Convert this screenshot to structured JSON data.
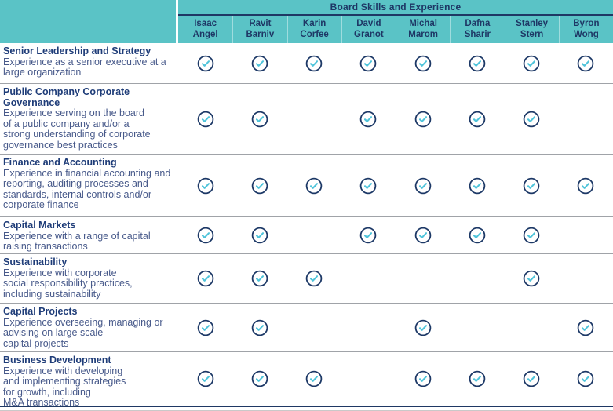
{
  "header": {
    "group_title": "Board Skills and Experience",
    "columns": [
      {
        "first_name": "Isaac",
        "last_name": "Angel"
      },
      {
        "first_name": "Ravit",
        "last_name": "Barniv"
      },
      {
        "first_name": "Karin",
        "last_name": "Corfee"
      },
      {
        "first_name": "David",
        "last_name": "Granot"
      },
      {
        "first_name": "Michal",
        "last_name": "Marom"
      },
      {
        "first_name": "Dafna",
        "last_name": "Sharir"
      },
      {
        "first_name": "Stanley",
        "last_name": "Stern"
      },
      {
        "first_name": "Byron",
        "last_name": "Wong"
      }
    ]
  },
  "rows": [
    {
      "title": "Senior Leadership and Strategy",
      "description": "Experience as a senior executive at a\nlarge organization",
      "checks": [
        1,
        1,
        1,
        1,
        1,
        1,
        1,
        1
      ]
    },
    {
      "title": "Public Company Corporate Governance",
      "description": "Experience serving on the board\nof a public company and/or a\nstrong understanding of corporate\ngovernance best practices",
      "checks": [
        1,
        1,
        0,
        1,
        1,
        1,
        1,
        0
      ]
    },
    {
      "title": "Finance and Accounting",
      "description": "Experience in financial accounting and\nreporting, auditing processes and\nstandards, internal controls and/or\ncorporate finance",
      "checks": [
        1,
        1,
        1,
        1,
        1,
        1,
        1,
        1
      ]
    },
    {
      "title": "Capital Markets",
      "description": "Experience with a range of capital\nraising transactions",
      "checks": [
        1,
        1,
        0,
        1,
        1,
        1,
        1,
        0
      ]
    },
    {
      "title": "Sustainability",
      "description": "Experience with corporate\nsocial responsibility practices,\nincluding sustainability",
      "checks": [
        1,
        1,
        1,
        0,
        0,
        0,
        1,
        0
      ]
    },
    {
      "title": "Capital Projects",
      "description": "Experience overseeing, managing or\nadvising on large scale\ncapital projects",
      "checks": [
        1,
        1,
        0,
        0,
        1,
        0,
        0,
        1
      ]
    },
    {
      "title": "Business Development",
      "description": "Experience with developing\nand implementing strategies\nfor growth, including\nM&A transactions",
      "checks": [
        1,
        1,
        1,
        0,
        1,
        1,
        1,
        1
      ]
    }
  ],
  "icons": {
    "check": "check-circle-icon"
  },
  "colors": {
    "teal_header": "#5ac3c6",
    "header_text": "#1e3765",
    "row_title": "#1e3c78",
    "row_description": "#47598a",
    "check_mark": "#4fc4da",
    "check_circle": "#1c3866",
    "row_divider": "#a0a3a8",
    "header_divider": "#1f3864"
  },
  "chart_data": {
    "type": "table",
    "title": "Board Skills and Experience",
    "columns": [
      "Isaac Angel",
      "Ravit Barniv",
      "Karin Corfee",
      "David Granot",
      "Michal Marom",
      "Dafna Sharir",
      "Stanley Stern",
      "Byron Wong"
    ],
    "row_labels": [
      "Senior Leadership and Strategy",
      "Public Company Corporate Governance",
      "Finance and Accounting",
      "Capital Markets",
      "Sustainability",
      "Capital Projects",
      "Business Development"
    ],
    "matrix": [
      [
        1,
        1,
        1,
        1,
        1,
        1,
        1,
        1
      ],
      [
        1,
        1,
        0,
        1,
        1,
        1,
        1,
        0
      ],
      [
        1,
        1,
        1,
        1,
        1,
        1,
        1,
        1
      ],
      [
        1,
        1,
        0,
        1,
        1,
        1,
        1,
        0
      ],
      [
        1,
        1,
        1,
        0,
        0,
        0,
        1,
        0
      ],
      [
        1,
        1,
        0,
        0,
        1,
        0,
        0,
        1
      ],
      [
        1,
        1,
        1,
        0,
        1,
        1,
        1,
        1
      ]
    ],
    "legend": "check = director has this skill/experience"
  }
}
